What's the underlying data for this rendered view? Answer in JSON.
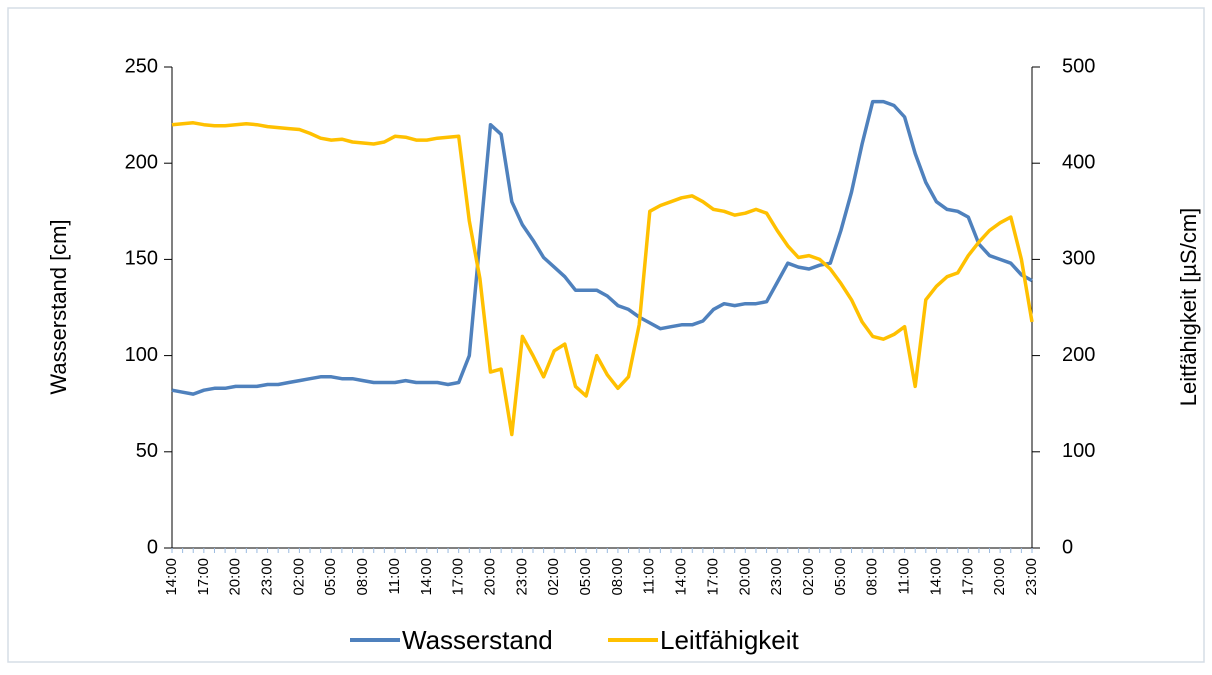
{
  "chart_data": {
    "type": "line",
    "y_label": "Wasserstand  [cm]",
    "y2_label": "Leitfähigkeit [µS/cm]",
    "categories": [
      "14:00",
      null,
      null,
      "17:00",
      null,
      null,
      "20:00",
      null,
      null,
      "23:00",
      null,
      null,
      "02:00",
      null,
      null,
      "05:00",
      null,
      null,
      "08:00",
      null,
      null,
      "11:00",
      null,
      null,
      "14:00",
      null,
      null,
      "17:00",
      null,
      null,
      "20:00",
      null,
      null,
      "23:00",
      null,
      null,
      "02:00",
      null,
      null,
      "05:00",
      null,
      null,
      "08:00",
      null,
      null,
      "11:00",
      null,
      null,
      "14:00",
      null,
      null,
      "17:00",
      null,
      null,
      "20:00",
      null,
      null,
      "23:00",
      null,
      null,
      "02:00",
      null,
      null,
      "05:00",
      null,
      null,
      "08:00",
      null,
      null,
      "11:00",
      null,
      null,
      "14:00",
      null,
      null,
      "17:00",
      null,
      null,
      "20:00",
      null,
      null,
      "23:00"
    ],
    "series": [
      {
        "name": "Wasserstand",
        "color": "#4f81bd",
        "axis": "y",
        "values": [
          82,
          81,
          80,
          82,
          83,
          83,
          84,
          84,
          84,
          85,
          85,
          86,
          87,
          88,
          89,
          89,
          88,
          88,
          87,
          86,
          86,
          86,
          87,
          86,
          86,
          86,
          85,
          86,
          100,
          160,
          220,
          215,
          180,
          168,
          160,
          151,
          146,
          141,
          134,
          134,
          134,
          131,
          126,
          124,
          120,
          117,
          114,
          115,
          116,
          116,
          118,
          124,
          127,
          126,
          127,
          127,
          128,
          138,
          148,
          146,
          145,
          147,
          148,
          165,
          185,
          210,
          232,
          232,
          230,
          224,
          205,
          190,
          180,
          176,
          175,
          172,
          158,
          152,
          150,
          148,
          142,
          139
        ]
      },
      {
        "name": "Leitfähigkeit",
        "color": "#ffc000",
        "axis": "y2",
        "values": [
          440,
          441,
          442,
          440,
          439,
          439,
          440,
          441,
          440,
          438,
          437,
          436,
          435,
          431,
          426,
          424,
          425,
          422,
          421,
          420,
          422,
          428,
          427,
          424,
          424,
          426,
          427,
          428,
          340,
          280,
          183,
          186,
          118,
          220,
          200,
          178,
          205,
          212,
          168,
          158,
          200,
          180,
          166,
          178,
          232,
          350,
          356,
          360,
          364,
          366,
          360,
          352,
          350,
          346,
          348,
          352,
          348,
          330,
          314,
          302,
          304,
          300,
          290,
          275,
          258,
          235,
          220,
          217,
          222,
          230,
          168,
          258,
          272,
          282,
          286,
          304,
          318,
          330,
          338,
          344,
          300,
          235
        ]
      }
    ],
    "ylim": [
      0,
      250
    ],
    "yticks": [
      0,
      50,
      100,
      150,
      200,
      250
    ],
    "y2lim": [
      0,
      500
    ],
    "y2ticks": [
      0,
      100,
      200,
      300,
      400,
      500
    ],
    "legend": "bottom"
  }
}
